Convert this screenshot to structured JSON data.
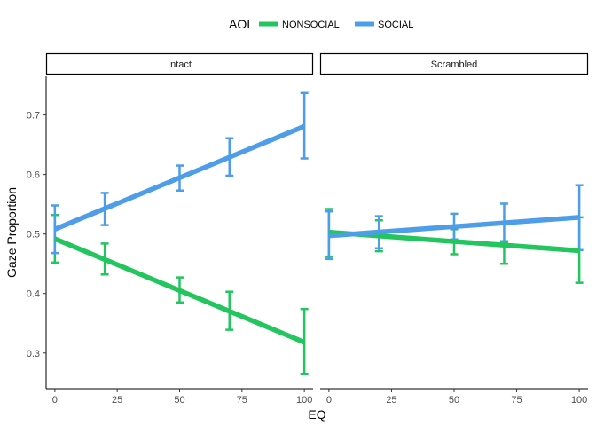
{
  "chart_data": {
    "type": "line",
    "xlabel": "EQ",
    "ylabel": "Gaze Proportion",
    "xlim": [
      -3.5,
      103.5
    ],
    "ylim": [
      0.24,
      0.765
    ],
    "x_ticks": [
      0,
      25,
      50,
      75,
      100
    ],
    "y_ticks": [
      0.3,
      0.4,
      0.5,
      0.6,
      0.7
    ],
    "grid": false,
    "legend": {
      "title": "AOI",
      "position": "top",
      "entries": [
        {
          "name": "NONSOCIAL",
          "color": "#22c55e"
        },
        {
          "name": "SOCIAL",
          "color": "#4d9de8"
        }
      ]
    },
    "panels": [
      {
        "label": "Intact",
        "lines": [
          {
            "series": "NONSOCIAL",
            "x": [
              0,
              100
            ],
            "y": [
              0.492,
              0.318
            ]
          },
          {
            "series": "SOCIAL",
            "x": [
              0,
              100
            ],
            "y": [
              0.508,
              0.681
            ]
          }
        ],
        "errorbars": [
          {
            "series": "NONSOCIAL",
            "x": [
              0,
              20,
              50,
              70,
              100
            ],
            "ymin": [
              0.452,
              0.432,
              0.385,
              0.339,
              0.265
            ],
            "ymax": [
              0.532,
              0.484,
              0.427,
              0.403,
              0.374
            ]
          },
          {
            "series": "SOCIAL",
            "x": [
              0,
              20,
              50,
              70,
              100
            ],
            "ymin": [
              0.468,
              0.515,
              0.573,
              0.598,
              0.627
            ],
            "ymax": [
              0.548,
              0.569,
              0.615,
              0.661,
              0.737
            ]
          }
        ]
      },
      {
        "label": "Scrambled",
        "lines": [
          {
            "series": "NONSOCIAL",
            "x": [
              0,
              100
            ],
            "y": [
              0.503,
              0.472
            ]
          },
          {
            "series": "SOCIAL",
            "x": [
              0,
              100
            ],
            "y": [
              0.497,
              0.528
            ]
          }
        ],
        "errorbars": [
          {
            "series": "NONSOCIAL",
            "x": [
              0,
              20,
              50,
              70,
              100
            ],
            "ymin": [
              0.462,
              0.471,
              0.466,
              0.45,
              0.418
            ],
            "ymax": [
              0.542,
              0.523,
              0.508,
              0.486,
              0.528
            ]
          },
          {
            "series": "SOCIAL",
            "x": [
              0,
              20,
              50,
              70,
              100
            ],
            "ymin": [
              0.458,
              0.476,
              0.491,
              0.488,
              0.473
            ],
            "ymax": [
              0.538,
              0.53,
              0.534,
              0.551,
              0.582
            ]
          }
        ]
      }
    ]
  }
}
